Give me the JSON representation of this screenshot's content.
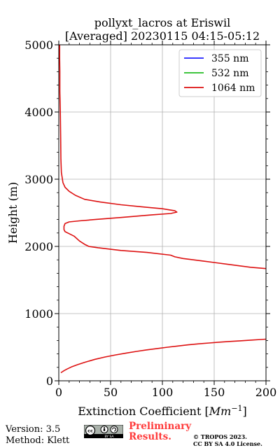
{
  "chart_data": {
    "type": "line",
    "title": [
      "pollyxt_lacros at Eriswil",
      "[Averaged] 20230115 04:15-05:12"
    ],
    "xlabel": "Extinction Coefficient [Mm⁻¹]",
    "xlabel_parts": {
      "prefix": "Extinction Coefficient [",
      "unit": "Mm",
      "exponent": "−1",
      "suffix": "]"
    },
    "ylabel": "Height (m)",
    "xlim": [
      0,
      200
    ],
    "ylim": [
      0,
      5000
    ],
    "xticks": [
      0,
      50,
      100,
      150,
      200
    ],
    "yticks": [
      0,
      1000,
      2000,
      3000,
      4000,
      5000
    ],
    "grid": true,
    "legend_position": "top-right",
    "series": [
      {
        "name": "355 nm",
        "color": "#1f1fff",
        "x": [],
        "y": []
      },
      {
        "name": "532 nm",
        "color": "#22bb22",
        "x": [],
        "y": []
      },
      {
        "name": "1064 nm",
        "color": "#dd1111",
        "x": [
          200,
          195,
          185,
          175,
          165,
          155,
          145,
          135,
          125,
          115,
          105,
          95,
          85,
          75,
          65,
          55,
          45,
          35,
          25,
          18,
          12,
          8,
          5,
          3,
          2,
          null,
          200,
          185,
          165,
          150,
          140,
          120,
          112,
          108,
          85,
          60,
          38,
          29,
          25,
          20,
          15,
          10,
          6,
          5,
          5,
          6,
          10,
          20,
          35,
          60,
          90,
          108,
          114,
          112,
          100,
          80,
          60,
          40,
          25,
          16,
          10,
          6,
          4,
          2.5,
          2,
          1.8,
          1.5,
          1,
          1,
          0.8,
          0.8
        ],
        "y": [
          620,
          615,
          605,
          595,
          585,
          575,
          563,
          550,
          535,
          518,
          500,
          480,
          460,
          438,
          412,
          385,
          355,
          320,
          275,
          240,
          205,
          175,
          150,
          130,
          120,
          null,
          1670,
          1690,
          1730,
          1760,
          1780,
          1820,
          1845,
          1870,
          1910,
          1940,
          1980,
          2000,
          2030,
          2080,
          2150,
          2190,
          2220,
          2250,
          2300,
          2340,
          2365,
          2380,
          2400,
          2430,
          2470,
          2490,
          2510,
          2530,
          2560,
          2590,
          2620,
          2660,
          2700,
          2760,
          2820,
          2880,
          2950,
          3100,
          3300,
          3600,
          4000,
          4300,
          4600,
          4800,
          5000
        ]
      }
    ]
  },
  "footer": {
    "version": "Version: 3.5",
    "method": "Method: Klett",
    "preliminary": [
      "Preliminary",
      "Results."
    ],
    "copyright": [
      "© TROPOS 2023.",
      "CC BY SA 4.0 License."
    ],
    "badge_label": "BY SA"
  }
}
